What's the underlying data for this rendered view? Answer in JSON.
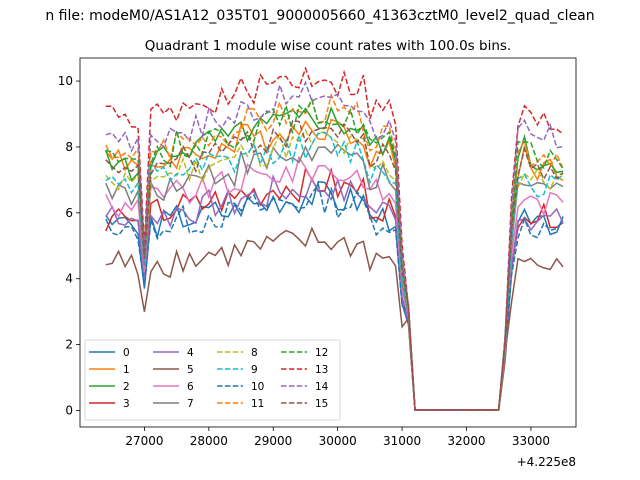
{
  "chart_data": {
    "type": "line",
    "suptitle": "n file: modeM0/AS1A12_035T01_9000005660_41363cztM0_level2_quad_clean",
    "title": "Quadrant 1 module wise count rates with 100.0s bins.",
    "xlabel": "",
    "ylabel": "",
    "x_offset_label": "+4.225e8",
    "xlim": [
      26000,
      33700
    ],
    "ylim": [
      -0.5,
      10.7
    ],
    "xticks": [
      27000,
      28000,
      29000,
      30000,
      31000,
      32000,
      33000
    ],
    "xtick_labels": [
      "27000",
      "28000",
      "29000",
      "30000",
      "31000",
      "32000",
      "33000"
    ],
    "yticks": [
      0,
      2,
      4,
      6,
      8,
      10
    ],
    "ytick_labels": [
      "0",
      "2",
      "4",
      "6",
      "8",
      "10"
    ],
    "legend_position": "lower-left",
    "legend_columns": 4,
    "segments": [
      [
        26400,
        31000,
        100
      ],
      [
        31100,
        32500,
        100
      ],
      [
        32600,
        33500,
        100
      ]
    ],
    "series": [
      {
        "name": "0",
        "color": "#1f77b4",
        "style": "solid",
        "level": 5.6,
        "shape": [
          5.8,
          5.6,
          5.7,
          5.9,
          5.5,
          5.4,
          3.7
        ]
      },
      {
        "name": "1",
        "color": "#ff7f0e",
        "style": "solid",
        "level": 7.4,
        "shape": [
          7.8,
          7.6,
          7.9,
          7.4,
          7.6,
          7.3,
          4.5
        ]
      },
      {
        "name": "2",
        "color": "#2ca02c",
        "style": "solid",
        "level": 7.6,
        "shape": [
          7.9,
          7.3,
          7.7,
          7.5,
          7.1,
          7.2,
          4.6
        ]
      },
      {
        "name": "3",
        "color": "#d62728",
        "style": "solid",
        "level": 5.9,
        "shape": [
          5.5,
          5.9,
          6.1,
          5.8,
          5.7,
          5.9,
          4.1
        ]
      },
      {
        "name": "4",
        "color": "#9467bd",
        "style": "solid",
        "level": 5.8,
        "shape": [
          6.0,
          6.2,
          5.8,
          5.6,
          5.9,
          5.7,
          4.0
        ]
      },
      {
        "name": "5",
        "color": "#8c564b",
        "style": "solid",
        "level": 4.4,
        "shape": [
          4.3,
          4.5,
          4.8,
          4.4,
          4.6,
          4.2,
          3.0
        ]
      },
      {
        "name": "6",
        "color": "#e377c2",
        "style": "solid",
        "level": 6.3,
        "shape": [
          6.5,
          6.2,
          6.0,
          6.4,
          6.1,
          6.3,
          4.2
        ]
      },
      {
        "name": "7",
        "color": "#7f7f7f",
        "style": "solid",
        "level": 6.7,
        "shape": [
          6.9,
          6.5,
          6.8,
          6.6,
          6.4,
          6.7,
          4.4
        ]
      },
      {
        "name": "8",
        "color": "#bcbd22",
        "style": "dashed",
        "level": 7.0,
        "shape": [
          7.2,
          7.0,
          6.8,
          7.1,
          6.9,
          7.0,
          4.6
        ]
      },
      {
        "name": "9",
        "color": "#17becf",
        "style": "dashed",
        "level": 6.9,
        "shape": [
          7.1,
          7.2,
          6.8,
          7.0,
          6.7,
          6.9,
          4.5
        ]
      },
      {
        "name": "10",
        "color": "#1f77b4",
        "style": "dashed",
        "level": 5.5,
        "shape": [
          5.7,
          5.5,
          5.4,
          5.6,
          5.5,
          5.3,
          3.8
        ]
      },
      {
        "name": "11",
        "color": "#ff7f0e",
        "style": "dashed",
        "level": 7.8,
        "shape": [
          8.0,
          7.8,
          7.6,
          7.9,
          7.7,
          7.9,
          4.7
        ]
      },
      {
        "name": "12",
        "color": "#2ca02c",
        "style": "dashed",
        "level": 7.7,
        "shape": [
          7.9,
          8.0,
          7.6,
          7.8,
          7.5,
          7.7,
          4.7
        ]
      },
      {
        "name": "13",
        "color": "#d62728",
        "style": "dashed",
        "level": 8.7,
        "shape": [
          9.3,
          9.1,
          8.8,
          8.9,
          8.6,
          8.5,
          5.0
        ]
      },
      {
        "name": "14",
        "color": "#9467bd",
        "style": "dashed",
        "level": 8.2,
        "shape": [
          8.5,
          8.3,
          8.2,
          8.4,
          8.0,
          8.3,
          4.9
        ]
      },
      {
        "name": "15",
        "color": "#8c564b",
        "style": "dashed",
        "level": 7.3,
        "shape": [
          7.5,
          7.3,
          7.1,
          7.4,
          7.2,
          7.3,
          4.6
        ]
      }
    ],
    "late_rise_scale": [
      1.0,
      1.02,
      1.05,
      1.08,
      1.12,
      1.15,
      1.17,
      1.14,
      1.05
    ],
    "tail_values": [
      0.05,
      4.0,
      5.8,
      6.3,
      6.8,
      6.5,
      6.2,
      6.4,
      6.1,
      6.0
    ]
  }
}
